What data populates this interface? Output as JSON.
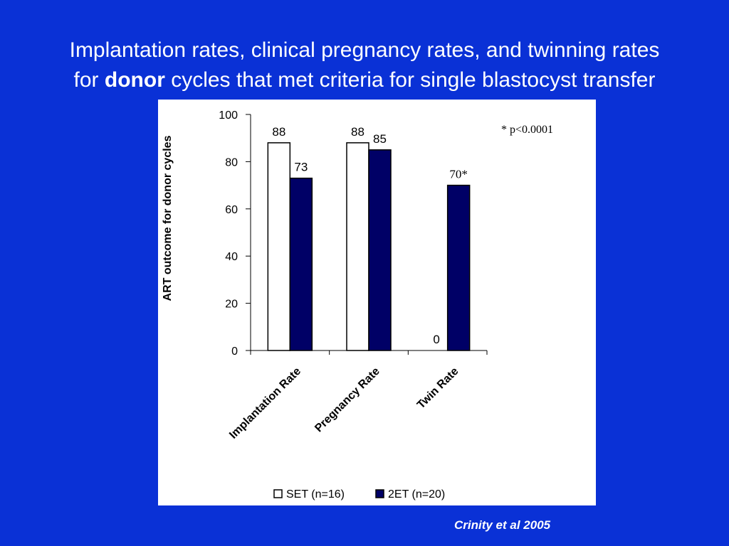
{
  "slide": {
    "title_line1": "Implantation rates, clinical pregnancy rates, and twinning rates",
    "title_line2_pre": "for ",
    "title_line2_bold": "donor",
    "title_line2_post": " cycles that met criteria for single blastocyst transfer",
    "citation": "Crinity et al  2005"
  },
  "chart_data": {
    "type": "bar",
    "categories": [
      "Implantation Rate",
      "Pregnancy Rate",
      "Twin Rate"
    ],
    "series": [
      {
        "name": "SET (n=16)",
        "values": [
          88,
          88,
          0
        ],
        "color": "#ffffff",
        "labels": [
          "88",
          "88",
          "0"
        ]
      },
      {
        "name": "2ET (n=20)",
        "values": [
          73,
          85,
          70
        ],
        "color": "#000066",
        "labels": [
          "73",
          "85",
          "70*"
        ]
      }
    ],
    "ylabel": "ART outcome for donor cycles",
    "xlabel": "",
    "ylim": [
      0,
      100
    ],
    "yticks": [
      0,
      20,
      40,
      60,
      80,
      100
    ],
    "annotation": "* p<0.0001",
    "legend": "bottom",
    "grid": false
  }
}
